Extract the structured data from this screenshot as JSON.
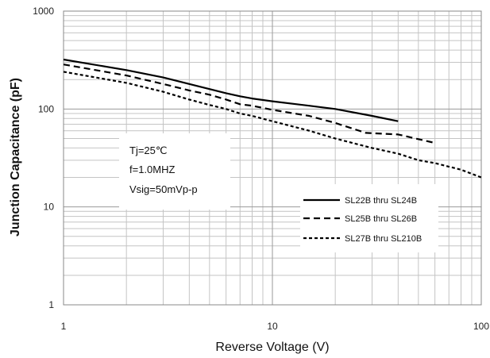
{
  "chart_data": {
    "type": "line",
    "xscale": "log",
    "yscale": "log",
    "xlim": [
      1,
      100
    ],
    "ylim": [
      1,
      1000
    ],
    "xlabel": "Reverse Voltage (V)",
    "ylabel": "Junction Capacitance (pF)",
    "x_ticks": [
      "1",
      "10",
      "100"
    ],
    "y_ticks": [
      "1",
      "10",
      "100",
      "1000"
    ],
    "grid": true,
    "legend_position": "bottom-right",
    "annotations": [
      "Tj=25℃",
      "f=1.0MHZ",
      "Vsig=50mVp-p"
    ],
    "series": [
      {
        "name": "SL22B thru SL24B",
        "style": "solid",
        "x": [
          1,
          2,
          3,
          4,
          5,
          6,
          7,
          8,
          10,
          15,
          20,
          30,
          40
        ],
        "y": [
          320,
          250,
          210,
          180,
          160,
          145,
          135,
          128,
          120,
          108,
          100,
          85,
          75
        ]
      },
      {
        "name": "SL25B thru SL26B",
        "style": "dashed",
        "x": [
          1,
          2,
          3,
          4,
          5,
          6,
          7,
          8,
          10,
          15,
          20,
          28,
          40,
          60
        ],
        "y": [
          285,
          220,
          180,
          155,
          140,
          125,
          112,
          108,
          98,
          85,
          72,
          57,
          55,
          45
        ]
      },
      {
        "name": "SL27B thru SL210B",
        "style": "dotted",
        "x": [
          1,
          2,
          3,
          4,
          5,
          6,
          7,
          8,
          10,
          15,
          20,
          30,
          40,
          50,
          60,
          80,
          100
        ],
        "y": [
          240,
          185,
          150,
          125,
          110,
          100,
          90,
          85,
          75,
          60,
          50,
          40,
          35,
          30,
          28,
          24,
          20
        ]
      }
    ]
  }
}
